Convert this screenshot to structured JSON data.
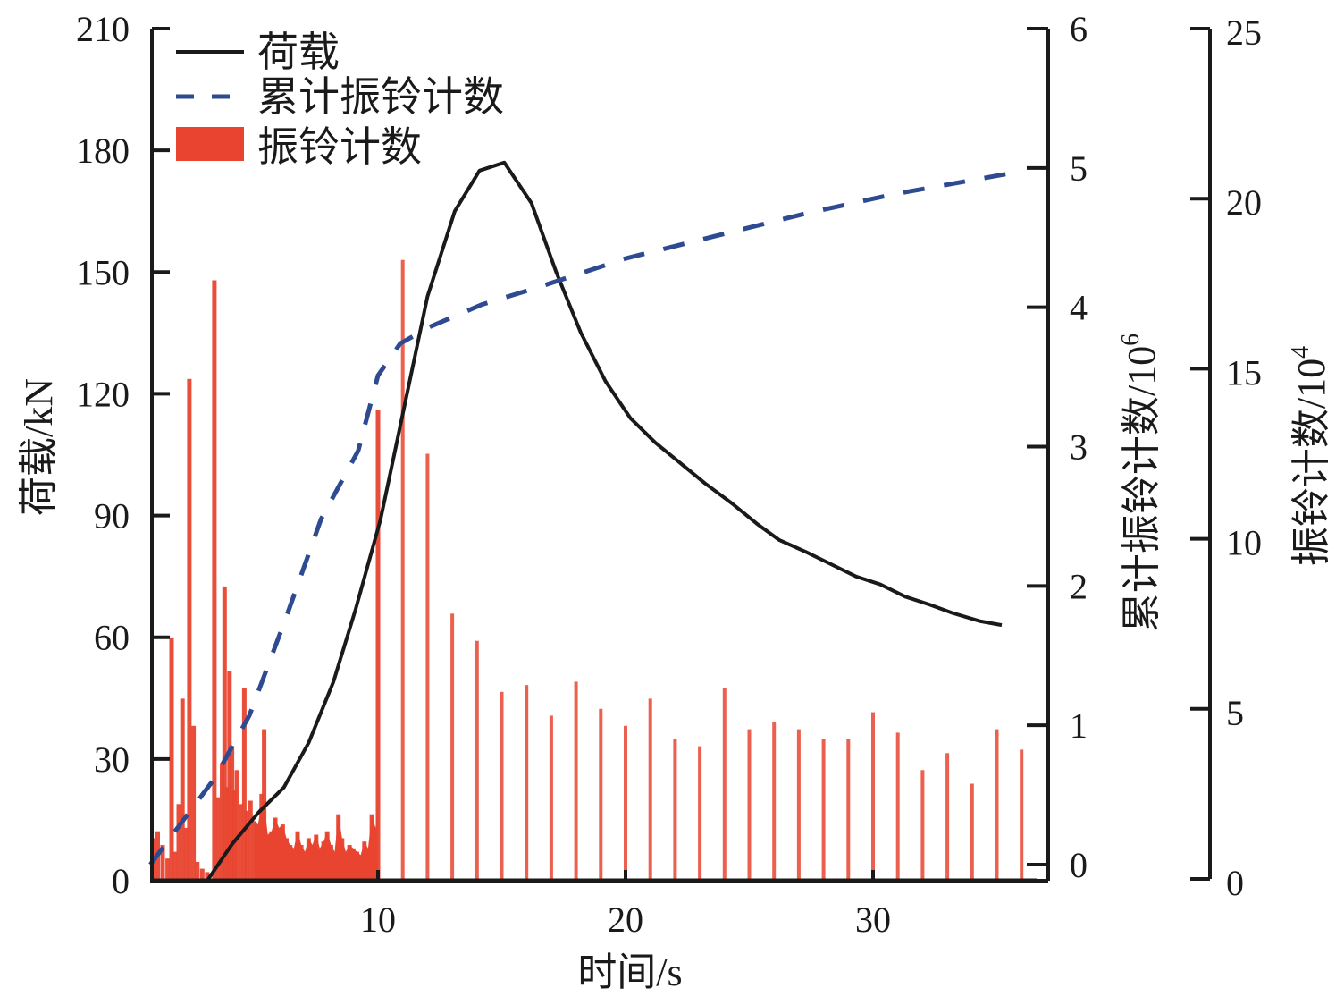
{
  "chart_data": {
    "type": "line",
    "title": "",
    "xlabel": "时间/s",
    "x_ticks": [
      10,
      20,
      30
    ],
    "xlim": [
      0.8,
      36.6
    ],
    "axes": {
      "left": {
        "label": "荷载/kN",
        "ylim": [
          0,
          210
        ],
        "ticks": [
          0,
          30,
          60,
          90,
          120,
          150,
          180,
          210
        ]
      },
      "right1": {
        "label_main": "累计振铃计数/10",
        "label_exp": "6",
        "ylim": [
          -0.12,
          6
        ],
        "ticks": [
          0,
          1,
          2,
          3,
          4,
          5,
          6
        ]
      },
      "right2": {
        "label_main": "振铃计数/10",
        "label_exp": "4",
        "ylim": [
          0,
          25
        ],
        "ticks": [
          0,
          5,
          10,
          15,
          20,
          25
        ]
      }
    },
    "legend": {
      "position": "top-left",
      "entries": [
        {
          "label": "荷载",
          "style": "solid-line",
          "color": "#1a1a1a"
        },
        {
          "label": "累计振铃计数",
          "style": "dashed-line",
          "color": "#2e4a91"
        },
        {
          "label": "振铃计数",
          "style": "bar",
          "color": "#e8442f"
        }
      ]
    },
    "series": [
      {
        "name": "荷载",
        "axis": "left",
        "unit": "kN",
        "color": "#1a1a1a",
        "x": [
          3.1,
          4.1,
          5.2,
          6.2,
          7.2,
          8.2,
          9.1,
          10.1,
          11.0,
          12.0,
          13.1,
          14.1,
          15.1,
          16.2,
          17.2,
          18.2,
          19.2,
          20.2,
          21.2,
          22.2,
          23.2,
          24.3,
          25.3,
          26.2,
          27.3,
          28.3,
          29.3,
          30.3,
          31.3,
          32.3,
          33.2,
          34.3,
          35.2
        ],
        "values": [
          0,
          9,
          17,
          23,
          34,
          49,
          67,
          89,
          115,
          144,
          165,
          175,
          177,
          167,
          150,
          135,
          123,
          114,
          108,
          103,
          98,
          93,
          88,
          84,
          81,
          78,
          75,
          73,
          70,
          68,
          66,
          64,
          63
        ]
      },
      {
        "name": "累计振铃计数",
        "axis": "right1",
        "unit": "10^6",
        "color": "#2e4a91",
        "x": [
          0.8,
          1.8,
          3.4,
          4.8,
          6.3,
          7.7,
          9.2,
          10.0,
          10.9,
          12.1,
          14.2,
          16.4,
          20.0,
          23.6,
          27.2,
          30.8,
          35.5
        ],
        "values": [
          0.0,
          0.24,
          0.62,
          1.07,
          1.78,
          2.48,
          2.97,
          3.51,
          3.74,
          3.86,
          4.02,
          4.14,
          4.35,
          4.51,
          4.67,
          4.81,
          4.96
        ]
      },
      {
        "name": "振铃计数",
        "axis": "right2",
        "unit": "10^4",
        "type": "bar",
        "color": "#e8442f",
        "x": [
          0.9,
          1.1,
          1.3,
          1.5,
          1.66,
          1.8,
          1.95,
          2.1,
          2.25,
          2.38,
          2.55,
          2.7,
          2.9,
          3.1,
          3.39,
          3.55,
          3.7,
          3.8,
          3.9,
          4.0,
          4.1,
          4.2,
          4.3,
          4.45,
          4.6,
          4.7,
          4.85,
          5.0,
          5.15,
          5.3,
          5.4,
          5.55,
          5.7,
          5.85,
          6.0,
          6.15,
          6.3,
          6.45,
          6.6,
          6.75,
          6.9,
          7.05,
          7.2,
          7.35,
          7.5,
          7.65,
          7.8,
          7.95,
          8.1,
          8.25,
          8.4,
          8.55,
          8.7,
          8.85,
          9.0,
          9.15,
          9.3,
          9.45,
          9.6,
          9.75,
          9.9,
          10.0,
          11.0,
          12.0,
          13.0,
          14.0,
          15.0,
          16.0,
          17.0,
          18.0,
          19.0,
          20.0,
          21.0,
          22.0,
          23.0,
          24.0,
          25.0,
          26.0,
          27.0,
          28.0,
          29.0,
          30.0,
          31.0,
          32.0,
          33.0,
          34.0,
          35.0,
          36.0
        ],
        "values": [
          1.2,
          1.4,
          1.0,
          0.6,
          7.1,
          0.8,
          2.2,
          5.3,
          1.5,
          14.7,
          4.5,
          0.5,
          0.3,
          0.2,
          17.6,
          2.4,
          3.4,
          8.6,
          2.7,
          6.1,
          3.9,
          2.6,
          3.2,
          2.2,
          5.6,
          2.0,
          2.3,
          1.7,
          1.6,
          2.5,
          4.4,
          1.3,
          1.4,
          1.8,
          1.5,
          1.6,
          1.2,
          1.0,
          0.9,
          1.4,
          1.0,
          0.8,
          1.2,
          1.0,
          1.3,
          0.9,
          1.1,
          1.4,
          1.0,
          0.8,
          1.9,
          1.2,
          0.8,
          1.0,
          0.9,
          0.8,
          0.7,
          1.1,
          0.9,
          1.9,
          1.5,
          13.8,
          18.2,
          12.5,
          7.8,
          7.0,
          5.5,
          5.7,
          4.8,
          5.8,
          5.0,
          4.5,
          5.3,
          4.1,
          3.9,
          5.6,
          4.4,
          4.6,
          4.4,
          4.1,
          4.1,
          4.9,
          4.3,
          3.2,
          3.7,
          2.8,
          4.4,
          3.8
        ]
      }
    ]
  }
}
